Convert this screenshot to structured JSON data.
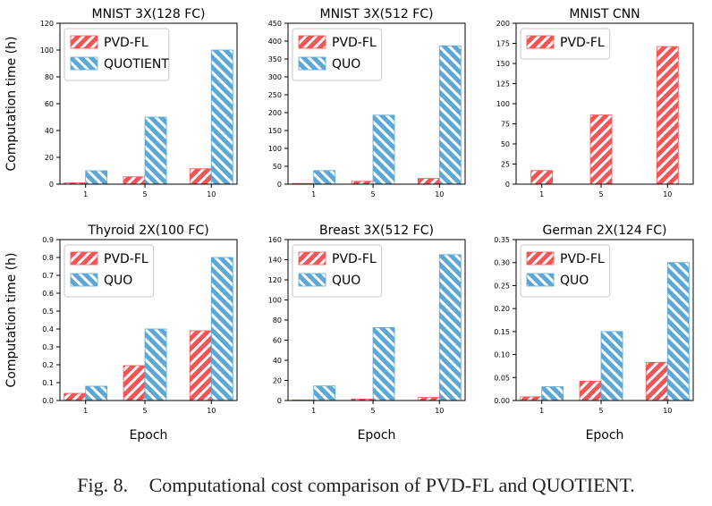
{
  "caption": {
    "label": "Fig. 8.",
    "text": "Computational cost comparison of PVD-FL and QUOTIENT."
  },
  "colors": {
    "pvd": "#f25555",
    "quo": "#5ba8d6"
  },
  "chart_data": [
    {
      "type": "bar",
      "title": "MNIST 3X(128 FC)",
      "ylabel": "Computation time (h)",
      "xlabel": "",
      "categories": [
        "1",
        "5",
        "10"
      ],
      "ylim": [
        0,
        120
      ],
      "yticks": [
        "0",
        "20",
        "40",
        "60",
        "80",
        "100",
        "120"
      ],
      "legend_position": "upper-left",
      "series": [
        {
          "name": "PVD-FL",
          "values": [
            1,
            5.5,
            11.5
          ]
        },
        {
          "name": "QUOTIENT",
          "values": [
            10,
            50,
            100
          ]
        }
      ]
    },
    {
      "type": "bar",
      "title": "MNIST 3X(512 FC)",
      "ylabel": "",
      "xlabel": "",
      "categories": [
        "1",
        "5",
        "10"
      ],
      "ylim": [
        0,
        450
      ],
      "yticks": [
        "0",
        "50",
        "100",
        "150",
        "200",
        "250",
        "300",
        "350",
        "400",
        "450"
      ],
      "legend_position": "upper-left",
      "series": [
        {
          "name": "PVD-FL",
          "values": [
            2,
            8,
            16
          ]
        },
        {
          "name": "QUO",
          "values": [
            38,
            193,
            387
          ]
        }
      ]
    },
    {
      "type": "bar",
      "title": "MNIST CNN",
      "ylabel": "",
      "xlabel": "",
      "categories": [
        "1",
        "5",
        "10"
      ],
      "ylim": [
        0,
        200
      ],
      "yticks": [
        "0",
        "25",
        "50",
        "75",
        "100",
        "125",
        "150",
        "175",
        "200"
      ],
      "legend_position": "upper-left",
      "series": [
        {
          "name": "PVD-FL",
          "values": [
            17,
            86,
            171
          ]
        }
      ]
    },
    {
      "type": "bar",
      "title": "Thyroid 2X(100 FC)",
      "ylabel": "Computation time (h)",
      "xlabel": "Epoch",
      "categories": [
        "1",
        "5",
        "10"
      ],
      "ylim": [
        0,
        0.9
      ],
      "yticks": [
        "0.0",
        "0.1",
        "0.2",
        "0.3",
        "0.4",
        "0.5",
        "0.6",
        "0.7",
        "0.8",
        "0.9"
      ],
      "legend_position": "upper-left",
      "series": [
        {
          "name": "PVD-FL",
          "values": [
            0.04,
            0.195,
            0.39
          ]
        },
        {
          "name": "QUO",
          "values": [
            0.08,
            0.4,
            0.8
          ]
        }
      ]
    },
    {
      "type": "bar",
      "title": "Breast 3X(512 FC)",
      "ylabel": "",
      "xlabel": "Epoch",
      "categories": [
        "1",
        "5",
        "10"
      ],
      "ylim": [
        0,
        160
      ],
      "yticks": [
        "0",
        "20",
        "40",
        "60",
        "80",
        "100",
        "120",
        "140",
        "160"
      ],
      "legend_position": "upper-left",
      "series": [
        {
          "name": "PVD-FL",
          "values": [
            0.5,
            1.5,
            3
          ]
        },
        {
          "name": "QUO",
          "values": [
            14.5,
            72.5,
            145
          ]
        }
      ]
    },
    {
      "type": "bar",
      "title": "German 2X(124 FC)",
      "ylabel": "",
      "xlabel": "Epoch",
      "categories": [
        "1",
        "5",
        "10"
      ],
      "ylim": [
        0,
        0.35
      ],
      "yticks": [
        "0.00",
        "0.05",
        "0.10",
        "0.15",
        "0.20",
        "0.25",
        "0.30",
        "0.35"
      ],
      "legend_position": "upper-left",
      "series": [
        {
          "name": "PVD-FL",
          "values": [
            0.008,
            0.042,
            0.083
          ]
        },
        {
          "name": "QUO",
          "values": [
            0.03,
            0.15,
            0.3
          ]
        }
      ]
    }
  ]
}
